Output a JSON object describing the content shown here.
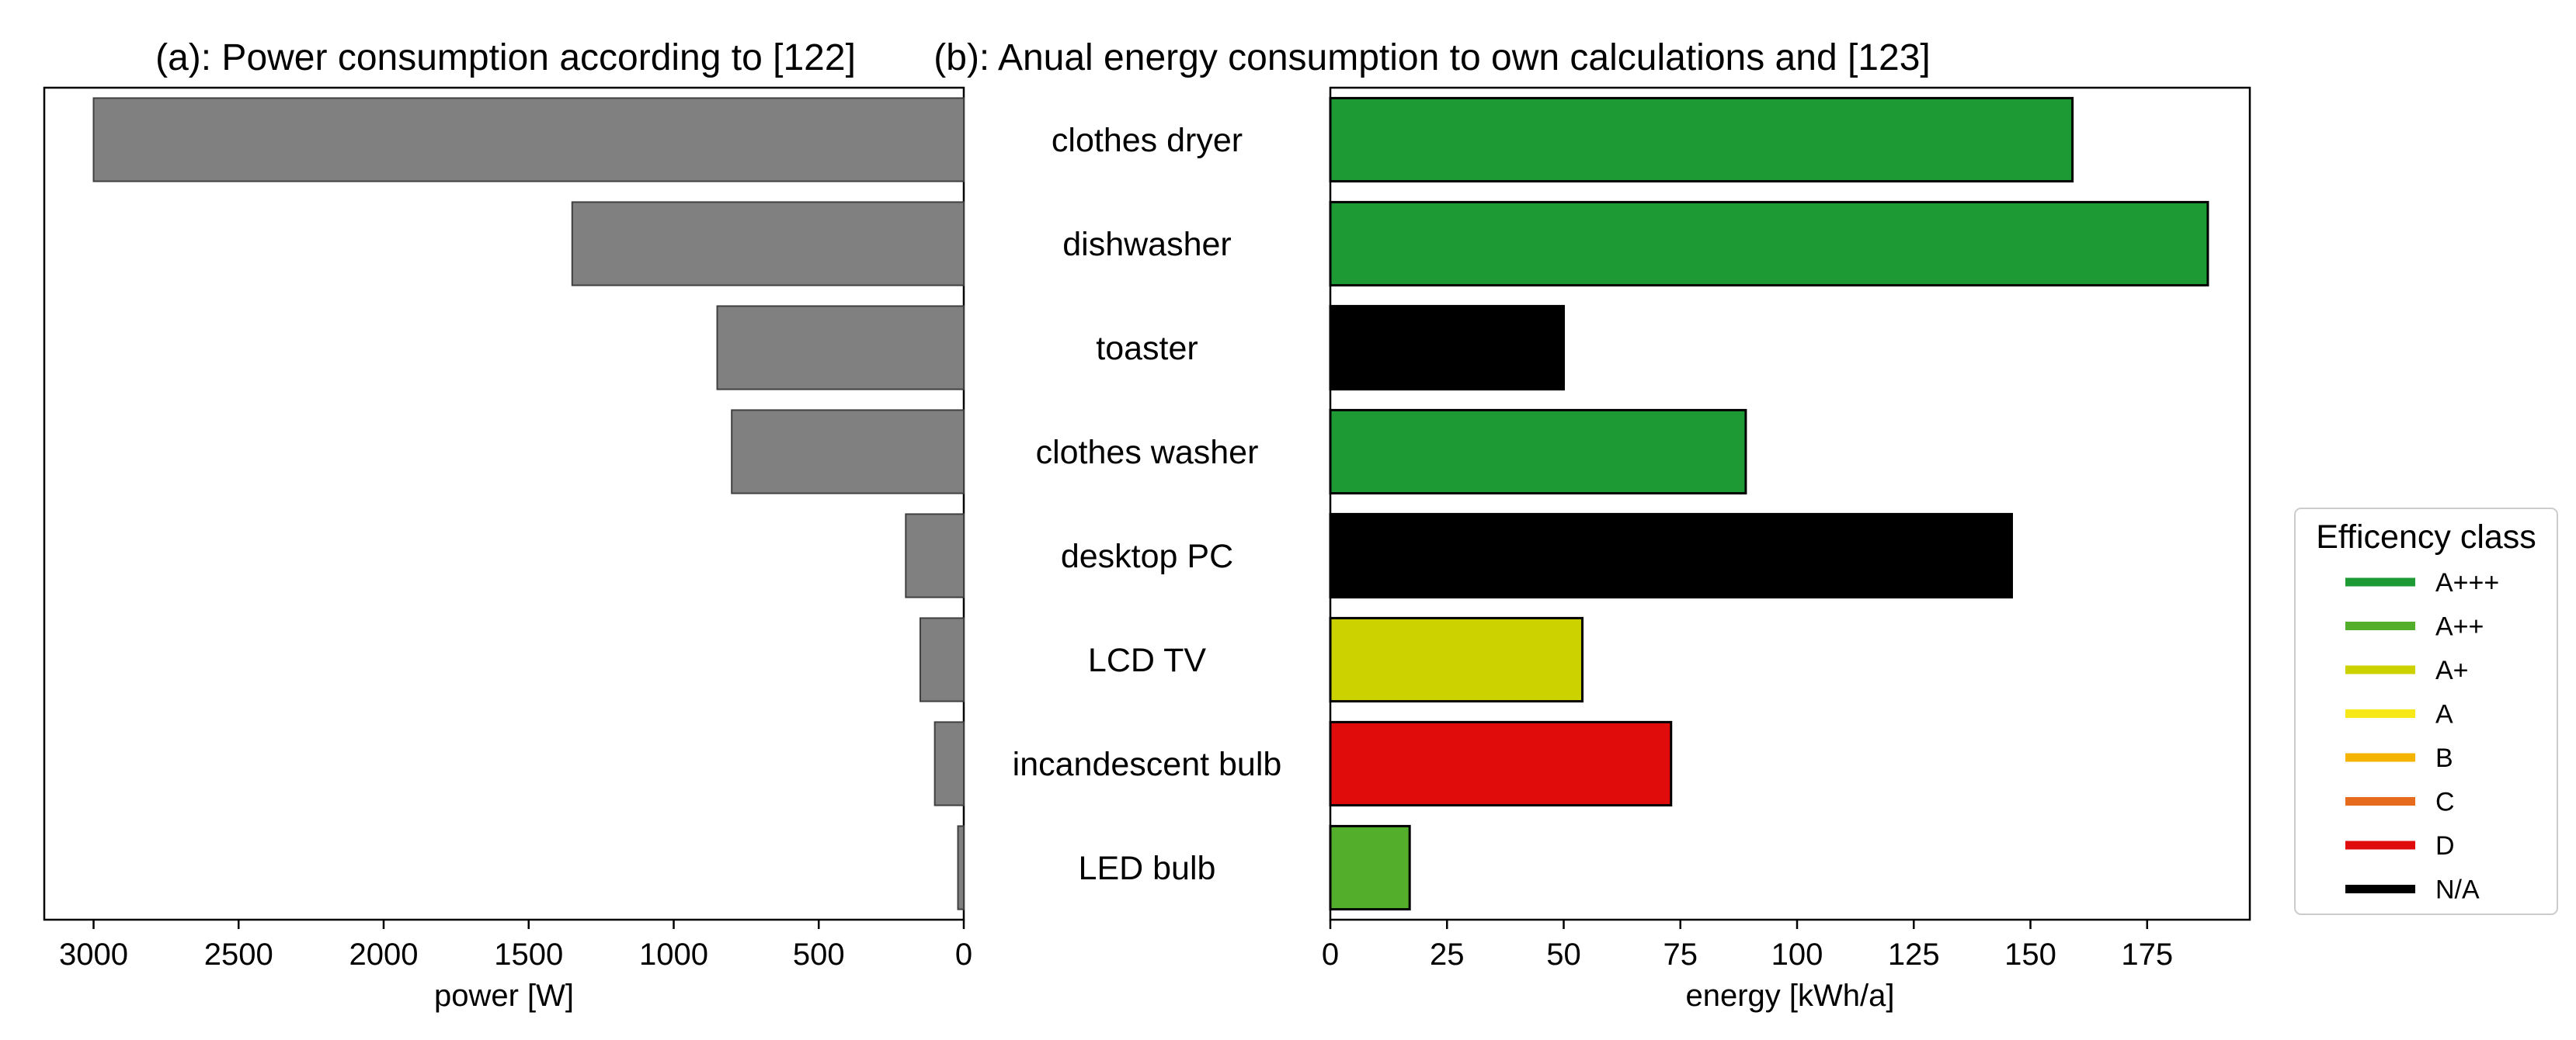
{
  "chart_data": [
    {
      "type": "bar",
      "orientation": "horizontal",
      "x_inverted": true,
      "title": "(a): Power consumption according to [122]",
      "xlabel": "power [W]",
      "ylabel": "",
      "xlim": [
        3170,
        0
      ],
      "xticks": [
        3000,
        2500,
        2000,
        1500,
        1000,
        500,
        0
      ],
      "categories": [
        "clothes dryer",
        "dishwasher",
        "toaster",
        "clothes washer",
        "desktop PC",
        "LCD TV",
        "incandescent bulb",
        "LED bulb"
      ],
      "values": [
        3000,
        1350,
        850,
        800,
        200,
        150,
        100,
        20
      ],
      "bar_color": "#808080",
      "edge_color": "#404040",
      "grid": false
    },
    {
      "type": "bar",
      "orientation": "horizontal",
      "title": "(b): Anual energy consumption to own calculations and [123]",
      "xlabel": "energy [kWh/a]",
      "ylabel": "",
      "xlim": [
        0,
        197
      ],
      "xticks": [
        0,
        25,
        50,
        75,
        100,
        125,
        150,
        175
      ],
      "categories": [
        "clothes dryer",
        "dishwasher",
        "toaster",
        "clothes washer",
        "desktop PC",
        "LCD TV",
        "incandescent bulb",
        "LED bulb"
      ],
      "values": [
        159,
        188,
        50,
        89,
        146,
        54,
        73,
        17
      ],
      "efficiency_class": [
        "A+++",
        "A+++",
        "N/A",
        "A+++",
        "N/A",
        "A+",
        "D",
        "A++"
      ],
      "edge_color": "#000000",
      "grid": false
    }
  ],
  "legend": {
    "title": "Efficency class",
    "placement": "right",
    "items": [
      {
        "label": "A+++",
        "color": "#1e9a34"
      },
      {
        "label": "A++",
        "color": "#52ae2b"
      },
      {
        "label": "A+",
        "color": "#ccd200"
      },
      {
        "label": "A",
        "color": "#f7e81a"
      },
      {
        "label": "B",
        "color": "#f4b400"
      },
      {
        "label": "C",
        "color": "#e66b1c"
      },
      {
        "label": "D",
        "color": "#e00c0c"
      },
      {
        "label": "N/A",
        "color": "#000000"
      }
    ]
  }
}
